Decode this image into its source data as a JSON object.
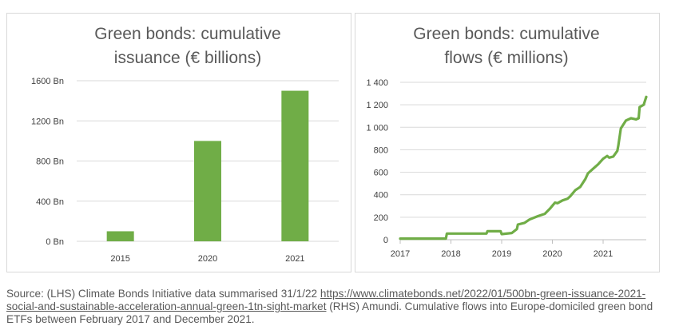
{
  "chart_data": [
    {
      "type": "bar",
      "title_lines": [
        "Green bonds: cumulative",
        "issuance (€ billions)"
      ],
      "categories": [
        "2015",
        "2020",
        "2021"
      ],
      "values": [
        100,
        1000,
        1500
      ],
      "ylim": [
        0,
        1600
      ],
      "y_ticks": [
        0,
        400,
        800,
        1200,
        1600
      ],
      "y_tick_labels": [
        "0 Bn",
        "400 Bn",
        "800 Bn",
        "1200 Bn",
        "1600 Bn"
      ],
      "grid": true,
      "color": "#70ad47"
    },
    {
      "type": "line",
      "title_lines": [
        "Green bonds: cumulative",
        "flows (€ millions)"
      ],
      "xlim": [
        2017.0,
        2021.85
      ],
      "ylim": [
        0,
        1400
      ],
      "x_ticks": [
        2017,
        2018,
        2019,
        2020,
        2021
      ],
      "x_tick_labels": [
        "2017",
        "2018",
        "2019",
        "2020",
        "2021"
      ],
      "y_ticks": [
        0,
        200,
        400,
        600,
        800,
        1000,
        1200,
        1400
      ],
      "y_tick_labels": [
        "0",
        "200",
        "400",
        "600",
        "800",
        "1 000",
        "1 200",
        "1 400"
      ],
      "grid": true,
      "color": "#70ad47",
      "x": [
        2017.0,
        2017.9,
        2017.92,
        2018.7,
        2018.72,
        2018.98,
        2019.0,
        2019.2,
        2019.3,
        2019.32,
        2019.45,
        2019.55,
        2019.72,
        2019.85,
        2019.95,
        2020.05,
        2020.1,
        2020.2,
        2020.3,
        2020.35,
        2020.45,
        2020.55,
        2020.65,
        2020.7,
        2020.8,
        2020.9,
        2021.0,
        2021.08,
        2021.12,
        2021.2,
        2021.28,
        2021.3,
        2021.35,
        2021.45,
        2021.55,
        2021.6,
        2021.65,
        2021.7,
        2021.72,
        2021.8,
        2021.85
      ],
      "y": [
        10,
        10,
        55,
        55,
        75,
        75,
        50,
        60,
        95,
        135,
        150,
        180,
        210,
        230,
        275,
        330,
        325,
        350,
        365,
        385,
        440,
        470,
        540,
        590,
        630,
        670,
        720,
        745,
        730,
        740,
        790,
        840,
        990,
        1060,
        1080,
        1075,
        1070,
        1080,
        1180,
        1200,
        1270
      ]
    }
  ],
  "source": {
    "prefix": "Source: (LHS) Climate Bonds Initiative data summarised 31/1/22 ",
    "link": "https://www.climatebonds.net/2022/01/500bn-green-issuance-2021-social-and-sustainable-acceleration-annual-green-1tn-sight-market",
    "suffix": " (RHS) Amundi. Cumulative flows into Europe-domiciled green bond ETFs between February 2017 and December 2021."
  }
}
